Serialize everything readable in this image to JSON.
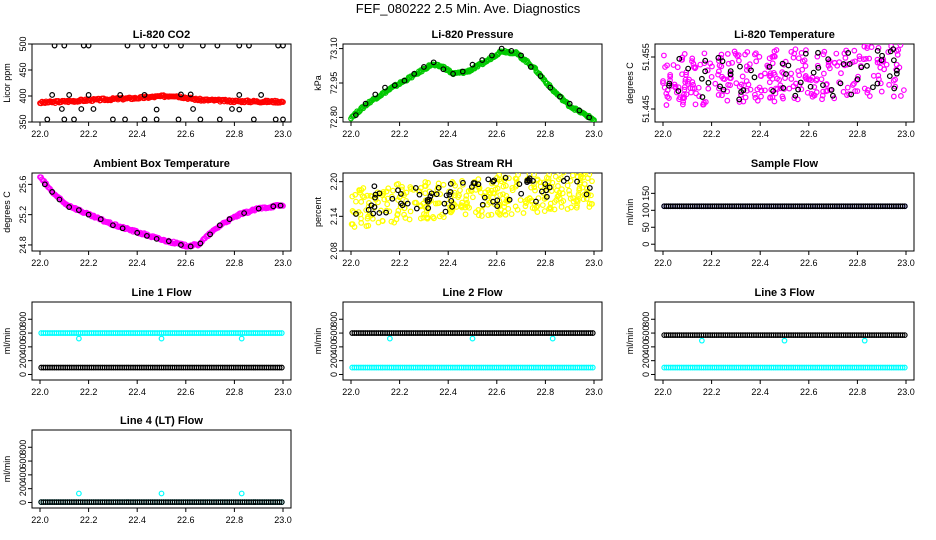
{
  "page": {
    "title": "FEF_080222  2.5 Min. Ave. Diagnostics"
  },
  "x_ticks": [
    "22.0",
    "22.2",
    "22.4",
    "22.6",
    "22.8",
    "23.0"
  ],
  "chart_data": [
    {
      "id": "co2",
      "type": "scatter",
      "title": "Li-820 CO2",
      "ylabel": "Licor ppm",
      "xlim": [
        22.0,
        23.0
      ],
      "ylim": [
        350,
        500
      ],
      "yticks": [
        "350",
        "400",
        "450",
        "500"
      ],
      "grid": false,
      "series": [
        {
          "color": "#ff0000",
          "kind": "band",
          "points": [
            [
              22.0,
              387
            ],
            [
              22.2,
              392
            ],
            [
              22.4,
              396
            ],
            [
              22.55,
              401
            ],
            [
              22.65,
              393
            ],
            [
              22.8,
              390
            ],
            [
              23.0,
              389
            ]
          ]
        },
        {
          "color": "#000000",
          "kind": "points",
          "points": [
            [
              22.06,
              497
            ],
            [
              22.1,
              497
            ],
            [
              22.18,
              497
            ],
            [
              22.2,
              497
            ],
            [
              22.36,
              497
            ],
            [
              22.42,
              497
            ],
            [
              22.47,
              497
            ],
            [
              22.52,
              497
            ],
            [
              22.58,
              497
            ],
            [
              22.67,
              497
            ],
            [
              22.73,
              497
            ],
            [
              22.82,
              497
            ],
            [
              22.86,
              497
            ],
            [
              22.98,
              497
            ],
            [
              23.0,
              497
            ],
            [
              22.03,
              355
            ],
            [
              22.1,
              355
            ],
            [
              22.14,
              355
            ],
            [
              22.3,
              355
            ],
            [
              22.35,
              355
            ],
            [
              22.43,
              355
            ],
            [
              22.48,
              355
            ],
            [
              22.57,
              355
            ],
            [
              22.66,
              355
            ],
            [
              22.74,
              355
            ],
            [
              22.88,
              355
            ],
            [
              22.97,
              355
            ],
            [
              23.0,
              355
            ],
            [
              22.09,
              375
            ],
            [
              22.17,
              375
            ],
            [
              22.22,
              375
            ],
            [
              22.48,
              374
            ],
            [
              22.63,
              375
            ],
            [
              22.79,
              375
            ],
            [
              22.82,
              374
            ],
            [
              22.05,
              402
            ],
            [
              22.12,
              402
            ],
            [
              22.2,
              402
            ],
            [
              22.33,
              402
            ],
            [
              22.43,
              402
            ],
            [
              22.58,
              403
            ],
            [
              22.62,
              403
            ],
            [
              22.82,
              402
            ],
            [
              22.91,
              402
            ]
          ]
        }
      ]
    },
    {
      "id": "pressure",
      "type": "scatter",
      "title": "Li-820 Pressure",
      "ylabel": "kPa",
      "xlim": [
        22.0,
        23.0
      ],
      "ylim": [
        72.78,
        73.12
      ],
      "yticks": [
        "72.80",
        "72.95",
        "73.10"
      ],
      "grid": false,
      "series": [
        {
          "color": "#00c800",
          "kind": "band",
          "points": [
            [
              22.0,
              72.8
            ],
            [
              22.08,
              72.87
            ],
            [
              22.17,
              72.93
            ],
            [
              22.27,
              72.99
            ],
            [
              22.33,
              73.03
            ],
            [
              22.38,
              73.02
            ],
            [
              22.42,
              72.99
            ],
            [
              22.48,
              73.0
            ],
            [
              22.55,
              73.04
            ],
            [
              22.62,
              73.09
            ],
            [
              22.68,
              73.08
            ],
            [
              22.75,
              73.02
            ],
            [
              22.83,
              72.92
            ],
            [
              22.9,
              72.85
            ],
            [
              22.95,
              72.82
            ],
            [
              23.0,
              72.79
            ]
          ]
        },
        {
          "color": "#000000",
          "kind": "points",
          "points": [
            [
              22.02,
              72.81
            ],
            [
              22.06,
              72.86
            ],
            [
              22.1,
              72.9
            ],
            [
              22.14,
              72.93
            ],
            [
              22.18,
              72.94
            ],
            [
              22.22,
              72.96
            ],
            [
              22.26,
              72.99
            ],
            [
              22.3,
              73.02
            ],
            [
              22.34,
              73.04
            ],
            [
              22.38,
              73.01
            ],
            [
              22.42,
              72.99
            ],
            [
              22.46,
              73.0
            ],
            [
              22.5,
              73.03
            ],
            [
              22.54,
              73.05
            ],
            [
              22.58,
              73.07
            ],
            [
              22.62,
              73.1
            ],
            [
              22.66,
              73.09
            ],
            [
              22.7,
              73.07
            ],
            [
              22.74,
              73.02
            ],
            [
              22.78,
              72.98
            ],
            [
              22.82,
              72.93
            ],
            [
              22.86,
              72.89
            ],
            [
              22.9,
              72.86
            ],
            [
              22.94,
              72.83
            ],
            [
              22.98,
              72.8
            ]
          ]
        }
      ]
    },
    {
      "id": "li_temp",
      "type": "scatter",
      "title": "Li-820 Temperature",
      "ylabel": "degrees C",
      "xlim": [
        22.0,
        23.0
      ],
      "ylim": [
        51.4425,
        51.4575
      ],
      "yticks": [
        "51.445",
        "51.455"
      ],
      "grid": false,
      "series": [
        {
          "color": "#ff00ff",
          "kind": "cloud",
          "seed": 7,
          "n": 300,
          "yrange": [
            51.4455,
            51.4555
          ],
          "trend": 0.002,
          "points": []
        },
        {
          "color": "#000000",
          "kind": "cloud",
          "seed": 3,
          "n": 60,
          "yrange": [
            51.446,
            51.455
          ],
          "trend": 0.002,
          "points": []
        }
      ]
    },
    {
      "id": "box_temp",
      "type": "scatter",
      "title": "Ambient Box Temperature",
      "ylabel": "degrees C",
      "xlim": [
        22.0,
        23.0
      ],
      "ylim": [
        24.72,
        25.75
      ],
      "yticks": [
        "24.8",
        "25.2",
        "25.6"
      ],
      "grid": false,
      "series": [
        {
          "color": "#ff00ff",
          "kind": "band",
          "points": [
            [
              22.0,
              25.7
            ],
            [
              22.05,
              25.5
            ],
            [
              22.1,
              25.35
            ],
            [
              22.2,
              25.2
            ],
            [
              22.3,
              25.07
            ],
            [
              22.4,
              24.97
            ],
            [
              22.5,
              24.87
            ],
            [
              22.6,
              24.79
            ],
            [
              22.65,
              24.8
            ],
            [
              22.7,
              24.95
            ],
            [
              22.75,
              25.08
            ],
            [
              22.82,
              25.2
            ],
            [
              22.9,
              25.28
            ],
            [
              22.98,
              25.32
            ]
          ]
        },
        {
          "color": "#000000",
          "kind": "points",
          "points": [
            [
              22.02,
              25.6
            ],
            [
              22.05,
              25.5
            ],
            [
              22.08,
              25.4
            ],
            [
              22.12,
              25.3
            ],
            [
              22.16,
              25.26
            ],
            [
              22.2,
              25.2
            ],
            [
              22.25,
              25.14
            ],
            [
              22.3,
              25.06
            ],
            [
              22.34,
              25.02
            ],
            [
              22.4,
              24.96
            ],
            [
              22.44,
              24.92
            ],
            [
              22.48,
              24.88
            ],
            [
              22.53,
              24.85
            ],
            [
              22.58,
              24.8
            ],
            [
              22.62,
              24.78
            ],
            [
              22.66,
              24.82
            ],
            [
              22.7,
              24.94
            ],
            [
              22.74,
              25.06
            ],
            [
              22.78,
              25.14
            ],
            [
              22.84,
              25.22
            ],
            [
              22.9,
              25.28
            ],
            [
              22.96,
              25.31
            ],
            [
              22.99,
              25.32
            ]
          ]
        }
      ]
    },
    {
      "id": "rh",
      "type": "scatter",
      "title": "Gas Stream RH",
      "ylabel": "percent",
      "xlim": [
        22.0,
        23.0
      ],
      "ylim": [
        2.08,
        2.215
      ],
      "yticks": [
        "2.08",
        "2.14",
        "2.20"
      ],
      "grid": false,
      "series": [
        {
          "color": "#ffff00",
          "kind": "cloud",
          "seed": 11,
          "n": 360,
          "yrange": [
            2.12,
            2.19
          ],
          "trend": 0.035,
          "points": []
        },
        {
          "color": "#000000",
          "kind": "cloud",
          "seed": 5,
          "n": 70,
          "yrange": [
            2.135,
            2.19
          ],
          "trend": 0.03,
          "points": []
        }
      ]
    },
    {
      "id": "sample_flow",
      "type": "scatter",
      "title": "Sample Flow",
      "ylabel": "ml/min",
      "xlim": [
        22.0,
        23.0
      ],
      "ylim": [
        -20,
        210
      ],
      "yticks": [
        "0",
        "50",
        "100",
        "150"
      ],
      "grid": false,
      "series": [
        {
          "color": "#0000ff",
          "kind": "line",
          "value": 112,
          "points": []
        },
        {
          "color": "#000000",
          "kind": "line",
          "value": 112,
          "points": []
        }
      ]
    },
    {
      "id": "line1",
      "type": "scatter",
      "title": "Line 1 Flow",
      "ylabel": "ml/min",
      "xlim": [
        22.0,
        23.0
      ],
      "ylim": [
        -80,
        1050
      ],
      "yticks": [
        "0",
        "200",
        "400",
        "600",
        "800"
      ],
      "grid": false,
      "series": [
        {
          "color": "#00ffff",
          "kind": "line",
          "value": 600,
          "outliers": [
            [
              22.16,
              520
            ],
            [
              22.5,
              520
            ],
            [
              22.83,
              520
            ]
          ],
          "points": []
        },
        {
          "color": "#000000",
          "kind": "line",
          "value": 100,
          "points": []
        }
      ]
    },
    {
      "id": "line2",
      "type": "scatter",
      "title": "Line 2 Flow",
      "ylabel": "ml/min",
      "xlim": [
        22.0,
        23.0
      ],
      "ylim": [
        -80,
        1050
      ],
      "yticks": [
        "0",
        "200",
        "400",
        "600",
        "800"
      ],
      "grid": false,
      "series": [
        {
          "color": "#00ffff",
          "kind": "line",
          "value": 100,
          "outliers": [
            [
              22.16,
              520
            ],
            [
              22.5,
              520
            ],
            [
              22.83,
              520
            ]
          ],
          "points": []
        },
        {
          "color": "#000000",
          "kind": "line",
          "value": 600,
          "points": []
        }
      ]
    },
    {
      "id": "line3",
      "type": "scatter",
      "title": "Line 3 Flow",
      "ylabel": "ml/min",
      "xlim": [
        22.0,
        23.0
      ],
      "ylim": [
        -80,
        1050
      ],
      "yticks": [
        "0",
        "200",
        "400",
        "600",
        "800"
      ],
      "grid": false,
      "series": [
        {
          "color": "#00ffff",
          "kind": "line",
          "value": 100,
          "outliers": [
            [
              22.16,
              490
            ],
            [
              22.5,
              490
            ],
            [
              22.83,
              490
            ]
          ],
          "points": []
        },
        {
          "color": "#000000",
          "kind": "line",
          "value": 570,
          "points": []
        }
      ]
    },
    {
      "id": "line4",
      "type": "scatter",
      "title": "Line 4 (LT) Flow",
      "ylabel": "ml/min",
      "xlim": [
        22.0,
        23.0
      ],
      "ylim": [
        -80,
        1050
      ],
      "yticks": [
        "0",
        "200",
        "400",
        "600",
        "800"
      ],
      "grid": false,
      "series": [
        {
          "color": "#00ffff",
          "kind": "line",
          "value": 5,
          "outliers": [
            [
              22.16,
              130
            ],
            [
              22.5,
              130
            ],
            [
              22.83,
              130
            ]
          ],
          "points": []
        },
        {
          "color": "#000000",
          "kind": "line",
          "value": 5,
          "points": []
        }
      ]
    }
  ]
}
